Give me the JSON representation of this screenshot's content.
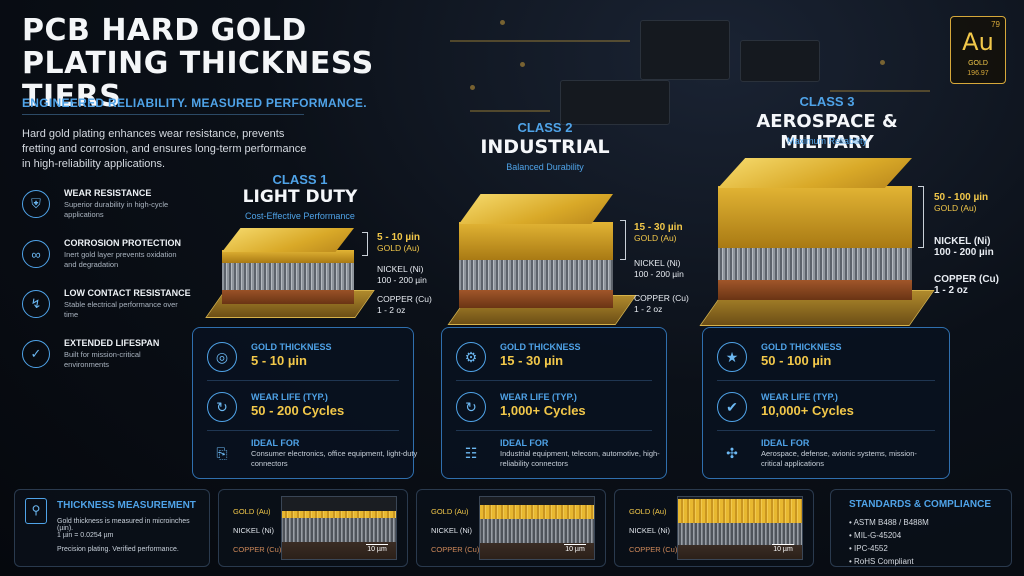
{
  "title": "PCB HARD GOLD PLATING THICKNESS TIERS",
  "title_line1": "PCB HARD GOLD",
  "title_line2": "PLATING THICKNESS TIERS",
  "subtitle": "ENGINEERED RELIABILITY. MEASURED PERFORMANCE.",
  "intro": "Hard gold plating enhances wear resistance, prevents fretting and corrosion, and ensures long-term performance in high-reliability applications.",
  "features": [
    {
      "title": "WEAR RESISTANCE",
      "desc": "Superior durability in high-cycle applications",
      "icon": "shield-icon"
    },
    {
      "title": "CORROSION PROTECTION",
      "desc": "Inert gold layer prevents oxidation and degradation",
      "icon": "chain-icon"
    },
    {
      "title": "LOW CONTACT RESISTANCE",
      "desc": "Stable electrical performance over time",
      "icon": "lightning-icon"
    },
    {
      "title": "EXTENDED LIFESPAN",
      "desc": "Built for mission-critical environments",
      "icon": "checkmark-icon"
    }
  ],
  "au_badge": {
    "number": "79",
    "symbol": "Au",
    "name": "GOLD",
    "mass": "196.97"
  },
  "classes": [
    {
      "num": "CLASS 1",
      "name": "LIGHT DUTY",
      "sub": "Cost-Effective Performance",
      "gold_range": "5 - 10 µin",
      "gold_label": "GOLD (Au)",
      "nickel_label": "NICKEL (Ni)",
      "nickel_range": "100 - 200 µin",
      "copper_label": "COPPER (Cu)",
      "copper_range": "1 - 2 oz",
      "thickness_label": "GOLD THICKNESS",
      "thickness": "5 - 10 µin",
      "wear_label": "WEAR LIFE (TYP.)",
      "wear": "50 - 200 Cycles",
      "ideal_label": "IDEAL FOR",
      "ideal": "Consumer electronics, office equipment, light-duty connectors"
    },
    {
      "num": "CLASS 2",
      "name": "INDUSTRIAL",
      "sub": "Balanced Durability",
      "gold_range": "15 - 30 µin",
      "gold_label": "GOLD (Au)",
      "nickel_label": "NICKEL (Ni)",
      "nickel_range": "100 - 200 µin",
      "copper_label": "COPPER (Cu)",
      "copper_range": "1 - 2 oz",
      "thickness_label": "GOLD THICKNESS",
      "thickness": "15 - 30 µin",
      "wear_label": "WEAR LIFE (TYP.)",
      "wear": "1,000+ Cycles",
      "ideal_label": "IDEAL FOR",
      "ideal": "Industrial equipment, telecom, automotive, high-reliability connectors"
    },
    {
      "num": "CLASS 3",
      "name": "AEROSPACE & MILITARY",
      "sub": "Maximum Reliability",
      "gold_range": "50 - 100 µin",
      "gold_label": "GOLD (Au)",
      "nickel_label": "NICKEL (Ni)",
      "nickel_range": "100 - 200 µin",
      "copper_label": "COPPER (Cu)",
      "copper_range": "1 - 2 oz",
      "thickness_label": "GOLD THICKNESS",
      "thickness": "50 - 100 µin",
      "wear_label": "WEAR LIFE (TYP.)",
      "wear": "10,000+ Cycles",
      "ideal_label": "IDEAL FOR",
      "ideal": "Aerospace, defense, avionic systems, mission-critical applications"
    }
  ],
  "measurement": {
    "title": "THICKNESS MEASUREMENT",
    "line1": "Gold thickness is measured in microinches (µin).",
    "line2": "1 µin = 0.0254 µm",
    "line3": "Precision plating. Verified performance."
  },
  "cross_section": {
    "gold": "GOLD (Au)",
    "nickel": "NICKEL (Ni)",
    "copper": "COPPER (Cu)",
    "scale": "10 µm"
  },
  "standards": {
    "title": "STANDARDS & COMPLIANCE",
    "items": [
      "ASTM B488 / B488M",
      "MIL-G-45204",
      "IPC-4552",
      "RoHS Compliant"
    ]
  },
  "colors": {
    "accent": "#4fa3e8",
    "gold": "#f2c84a",
    "box_border": "#2f6fae"
  }
}
